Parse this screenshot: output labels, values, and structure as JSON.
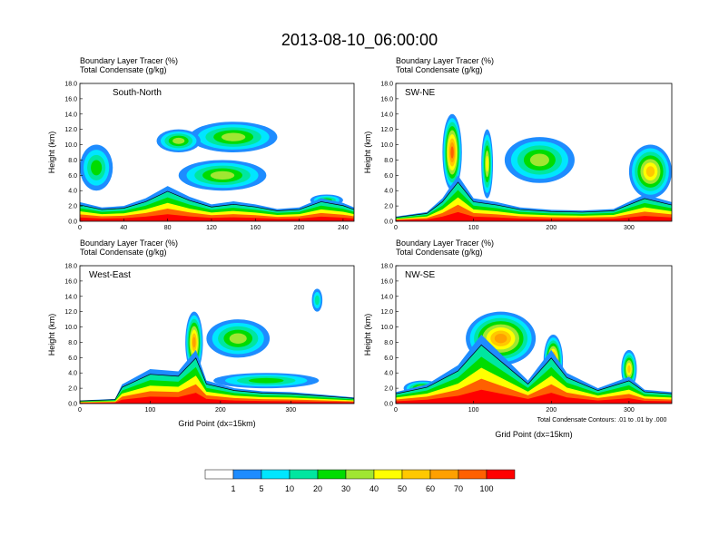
{
  "title": "2013-08-10_06:00:00",
  "panel_title_line1": "Boundary Layer Tracer    (%)",
  "panel_title_line2": "Total Condensate    (g/kg)",
  "y_axis_label": "Height (km)",
  "x_axis_label": "Grid Point (dx=15km)",
  "contour_note": "Total Condensate Contours: .01 to .01 by .000",
  "colors": {
    "ground_band": "#ff0000",
    "levels": [
      "#ffffff",
      "#1e8cff",
      "#00e6ff",
      "#00e6a0",
      "#00dc00",
      "#a0e632",
      "#ffff00",
      "#ffc800",
      "#ffa000",
      "#ff6000",
      "#ff0000"
    ]
  },
  "chart_data": [
    {
      "type": "heatmap",
      "label": "South-North",
      "xlim": [
        0,
        250
      ],
      "ylim": [
        0,
        18
      ],
      "x_ticks": [
        "0",
        "40",
        "80",
        "120",
        "160",
        "200",
        "240"
      ],
      "x_tick_values": [
        0,
        40,
        80,
        120,
        160,
        200,
        240
      ],
      "y_ticks": [
        "0.0",
        "2.0",
        "4.0",
        "6.0",
        "8.0",
        "10.0",
        "12.0",
        "14.0",
        "16.0",
        "18.0"
      ],
      "y_tick_values": [
        0,
        2,
        4,
        6,
        8,
        10,
        12,
        14,
        16,
        18
      ],
      "surface_profile": [
        [
          0,
          2.5
        ],
        [
          20,
          1.8
        ],
        [
          40,
          2.0
        ],
        [
          60,
          3.0
        ],
        [
          80,
          4.6
        ],
        [
          100,
          3.2
        ],
        [
          120,
          2.2
        ],
        [
          140,
          2.6
        ],
        [
          160,
          2.2
        ],
        [
          180,
          1.6
        ],
        [
          200,
          1.8
        ],
        [
          220,
          3.0
        ],
        [
          240,
          2.4
        ],
        [
          250,
          1.8
        ]
      ],
      "plumes": [
        {
          "x": [
            90,
            170
          ],
          "y": [
            4,
            8
          ],
          "peak": 30
        },
        {
          "x": [
            100,
            180
          ],
          "y": [
            9,
            13
          ],
          "peak": 30
        },
        {
          "x": [
            0,
            30
          ],
          "y": [
            4,
            10
          ],
          "peak": 20
        },
        {
          "x": [
            70,
            110
          ],
          "y": [
            9,
            12
          ],
          "peak": 30
        },
        {
          "x": [
            210,
            240
          ],
          "y": [
            2,
            3.5
          ],
          "peak": 20
        }
      ]
    },
    {
      "type": "heatmap",
      "label": "SW-NE",
      "xlim": [
        0,
        355
      ],
      "ylim": [
        0,
        18
      ],
      "x_ticks": [
        "0",
        "100",
        "200",
        "300"
      ],
      "x_tick_values": [
        0,
        100,
        200,
        300
      ],
      "y_ticks": [
        "0.0",
        "2.0",
        "4.0",
        "6.0",
        "8.0",
        "10.0",
        "12.0",
        "14.0",
        "16.0",
        "18.0"
      ],
      "y_tick_values": [
        0,
        2,
        4,
        6,
        8,
        10,
        12,
        14,
        16,
        18
      ],
      "surface_profile": [
        [
          0,
          0.6
        ],
        [
          40,
          1.2
        ],
        [
          60,
          3.0
        ],
        [
          80,
          6.0
        ],
        [
          100,
          3.0
        ],
        [
          130,
          2.5
        ],
        [
          160,
          1.8
        ],
        [
          200,
          1.5
        ],
        [
          240,
          1.4
        ],
        [
          280,
          1.6
        ],
        [
          320,
          3.5
        ],
        [
          355,
          2.5
        ]
      ],
      "plumes": [
        {
          "x": [
            60,
            85
          ],
          "y": [
            4,
            14
          ],
          "peak": 70
        },
        {
          "x": [
            110,
            125
          ],
          "y": [
            3,
            12
          ],
          "peak": 40
        },
        {
          "x": [
            140,
            230
          ],
          "y": [
            5,
            11
          ],
          "peak": 30
        },
        {
          "x": [
            300,
            355
          ],
          "y": [
            3,
            10
          ],
          "peak": 50
        }
      ]
    },
    {
      "type": "heatmap",
      "label": "West-East",
      "xlim": [
        0,
        390
      ],
      "ylim": [
        0,
        18
      ],
      "x_ticks": [
        "0",
        "100",
        "200",
        "300"
      ],
      "x_tick_values": [
        0,
        100,
        200,
        300
      ],
      "y_ticks": [
        "0.0",
        "2.0",
        "4.0",
        "6.0",
        "8.0",
        "10.0",
        "12.0",
        "14.0",
        "16.0",
        "18.0"
      ],
      "y_tick_values": [
        0,
        2,
        4,
        6,
        8,
        10,
        12,
        14,
        16,
        18
      ],
      "surface_profile": [
        [
          0,
          0.4
        ],
        [
          50,
          0.6
        ],
        [
          60,
          2.5
        ],
        [
          100,
          4.5
        ],
        [
          140,
          4.2
        ],
        [
          165,
          7.0
        ],
        [
          180,
          3.0
        ],
        [
          220,
          2.0
        ],
        [
          260,
          1.6
        ],
        [
          300,
          1.5
        ],
        [
          340,
          1.2
        ],
        [
          390,
          0.8
        ]
      ],
      "plumes": [
        {
          "x": [
            150,
            175
          ],
          "y": [
            4,
            12
          ],
          "peak": 60
        },
        {
          "x": [
            180,
            270
          ],
          "y": [
            6,
            11
          ],
          "peak": 30
        },
        {
          "x": [
            190,
            340
          ],
          "y": [
            2,
            4
          ],
          "peak": 20
        },
        {
          "x": [
            330,
            345
          ],
          "y": [
            12,
            15
          ],
          "peak": 10
        }
      ]
    },
    {
      "type": "heatmap",
      "label": "NW-SE",
      "xlim": [
        0,
        355
      ],
      "ylim": [
        0,
        18
      ],
      "x_ticks": [
        "0",
        "100",
        "200",
        "300"
      ],
      "x_tick_values": [
        0,
        100,
        200,
        300
      ],
      "y_ticks": [
        "0.0",
        "2.0",
        "4.0",
        "6.0",
        "8.0",
        "10.0",
        "12.0",
        "14.0",
        "16.0",
        "18.0"
      ],
      "y_tick_values": [
        0,
        2,
        4,
        6,
        8,
        10,
        12,
        14,
        16,
        18
      ],
      "surface_profile": [
        [
          0,
          1.5
        ],
        [
          40,
          2.5
        ],
        [
          80,
          5.0
        ],
        [
          110,
          9.0
        ],
        [
          140,
          6.0
        ],
        [
          170,
          3.0
        ],
        [
          200,
          7.0
        ],
        [
          220,
          4.0
        ],
        [
          260,
          2.0
        ],
        [
          300,
          3.5
        ],
        [
          320,
          1.8
        ],
        [
          355,
          1.5
        ]
      ],
      "plumes": [
        {
          "x": [
            90,
            180
          ],
          "y": [
            5,
            12
          ],
          "peak": 60
        },
        {
          "x": [
            190,
            215
          ],
          "y": [
            2,
            9
          ],
          "peak": 70
        },
        {
          "x": [
            290,
            310
          ],
          "y": [
            2,
            7
          ],
          "peak": 50
        },
        {
          "x": [
            10,
            60
          ],
          "y": [
            1,
            3
          ],
          "peak": 40
        }
      ]
    }
  ],
  "colorbar": {
    "labels": [
      "1",
      "5",
      "10",
      "20",
      "30",
      "40",
      "50",
      "60",
      "70",
      "100"
    ]
  }
}
